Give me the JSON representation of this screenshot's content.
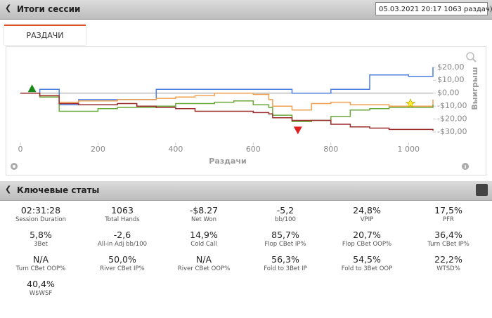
{
  "header": {
    "title": "Итоги сессии",
    "session_select": "05.03.2021 20:17 1063 раздач)"
  },
  "tabs": [
    "РАЗДАЧИ"
  ],
  "chart_data": {
    "type": "line",
    "x_label": "Раздачи",
    "y_label": "Выигрыш",
    "x": [
      0,
      50,
      100,
      150,
      200,
      250,
      300,
      350,
      400,
      450,
      500,
      550,
      600,
      640,
      650,
      700,
      750,
      800,
      850,
      900,
      950,
      1000,
      1063
    ],
    "series": [
      {
        "color": "#4a7fe0",
        "values": [
          0,
          3,
          -9,
          -5,
          -5,
          -5,
          -5,
          3,
          3,
          3,
          3,
          3,
          3,
          3,
          3,
          0,
          0,
          3,
          3,
          14,
          14,
          13,
          20
        ]
      },
      {
        "color": "#f0a050",
        "values": [
          0,
          -2,
          -7,
          -6,
          -6,
          -5,
          -5,
          -4,
          -3,
          -2,
          0,
          0,
          -1,
          -5,
          -10,
          -13,
          -8,
          -7,
          -9,
          -9,
          -10,
          -10,
          -5
        ]
      },
      {
        "color": "#6aa83a",
        "values": [
          0,
          -3,
          -14,
          -14,
          -12,
          -11,
          -11,
          -10,
          -8,
          -8,
          -7,
          -6,
          -9,
          -11,
          -17,
          -22,
          -21,
          -18,
          -13,
          -12,
          -11,
          -11,
          -9
        ]
      },
      {
        "color": "#9b2a2a",
        "values": [
          0,
          -2,
          -8,
          -9,
          -9,
          -8,
          -10,
          -11,
          -12,
          -14,
          -14,
          -14,
          -15,
          -16,
          -19,
          -21,
          -21,
          -24,
          -26,
          -27,
          -28,
          -28,
          -29
        ]
      }
    ],
    "markers": [
      {
        "x": 30,
        "y": 3,
        "color": "#1a8a1a",
        "shape": "triangle-up"
      },
      {
        "x": 715,
        "y": -28,
        "color": "#e02020",
        "shape": "triangle-down"
      },
      {
        "x": 1005,
        "y": -8,
        "color": "#ffee33",
        "shape": "star"
      }
    ],
    "xlim": [
      0,
      1063
    ],
    "ylim": [
      -37,
      28
    ],
    "xticks": [
      0,
      200,
      400,
      600,
      800,
      {
        "value": 1000,
        "label": "1 000"
      }
    ],
    "yticks": [
      {
        "value": 20,
        "label": "$20,00"
      },
      {
        "value": 10,
        "label": "$10,00"
      },
      {
        "value": 0,
        "label": "$0,00"
      },
      {
        "value": -10,
        "label": "-$10,00"
      },
      {
        "value": -20,
        "label": "-$20,00"
      },
      {
        "value": -30,
        "label": "-$30,00"
      }
    ]
  },
  "stats_panel": {
    "title": "Ключевые статы",
    "stats": [
      {
        "value": "02:31:28",
        "label": "Session Duration"
      },
      {
        "value": "1063",
        "label": "Total Hands"
      },
      {
        "value": "-$8.27",
        "label": "Net Won"
      },
      {
        "value": "-5,2",
        "label": "bb/100"
      },
      {
        "value": "24,8%",
        "label": "VPIP"
      },
      {
        "value": "17,5%",
        "label": "PFR"
      },
      {
        "value": "5,8%",
        "label": "3Bet"
      },
      {
        "value": "-2,6",
        "label": "All-in Adj bb/100"
      },
      {
        "value": "14,9%",
        "label": "Cold Call"
      },
      {
        "value": "85,7%",
        "label": "Flop CBet IP%"
      },
      {
        "value": "20,7%",
        "label": "Flop CBet OOP%"
      },
      {
        "value": "36,4%",
        "label": "Turn CBet IP%"
      },
      {
        "value": "N/A",
        "label": "Turn CBet OOP%"
      },
      {
        "value": "50,0%",
        "label": "River CBet IP%"
      },
      {
        "value": "N/A",
        "label": "River CBet OOP%"
      },
      {
        "value": "56,3%",
        "label": "Fold to 3Bet IP"
      },
      {
        "value": "54,5%",
        "label": "Fold to 3Bet OOP"
      },
      {
        "value": "22,2%",
        "label": "WTSD%"
      },
      {
        "value": "40,4%",
        "label": "W$WSF"
      }
    ]
  }
}
